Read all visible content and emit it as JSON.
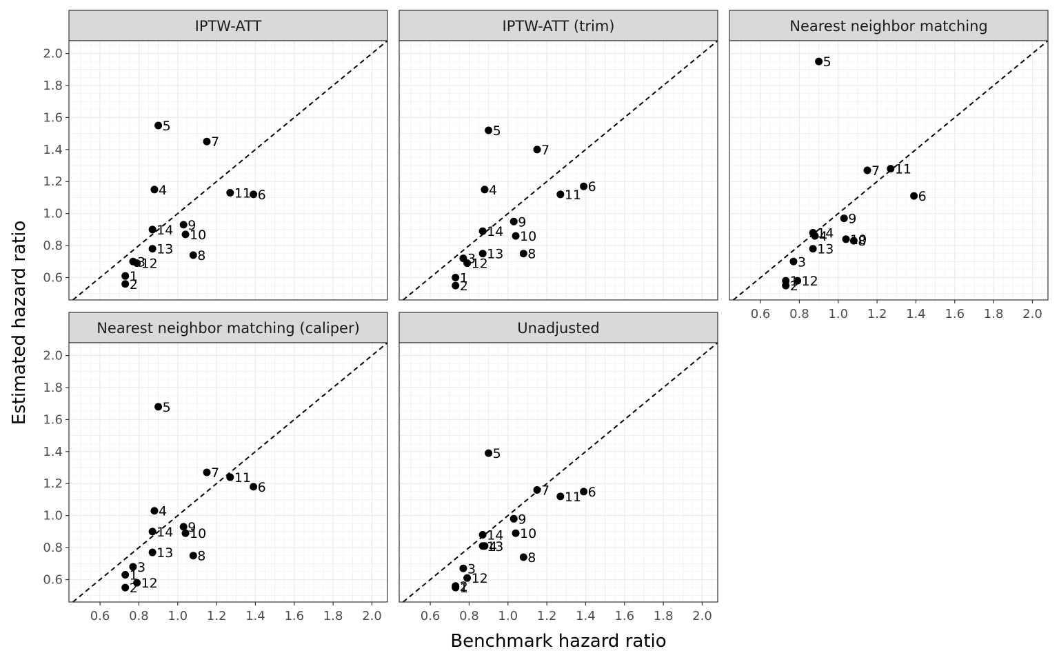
{
  "chart_data": {
    "type": "scatter",
    "layout": "facet-wrap 3 columns",
    "xlabel": "Benchmark hazard ratio",
    "ylabel": "Estimated hazard ratio",
    "xlim": [
      0.44,
      2.08
    ],
    "ylim": [
      0.46,
      2.08
    ],
    "x_ticks": [
      0.6,
      0.8,
      1.0,
      1.2,
      1.4,
      1.6,
      1.8,
      2.0
    ],
    "y_ticks": [
      0.6,
      0.8,
      1.0,
      1.2,
      1.4,
      1.6,
      1.8,
      2.0
    ],
    "x_tick_labels": [
      "0.6",
      "0.8",
      "1.0",
      "1.2",
      "1.4",
      "1.6",
      "1.8",
      "2.0"
    ],
    "y_tick_labels": [
      "0.6",
      "0.8",
      "1.0",
      "1.2",
      "1.4",
      "1.6",
      "1.8",
      "2.0"
    ],
    "grid": true,
    "reference_line": "y = x (dashed)",
    "benchmark_x": {
      "1": 0.73,
      "2": 0.73,
      "3": 0.77,
      "4": 0.88,
      "5": 0.9,
      "6": 1.39,
      "7": 1.15,
      "8": 1.08,
      "9": 1.03,
      "10": 1.04,
      "11": 1.27,
      "12": 0.79,
      "13": 0.87,
      "14": 0.87
    },
    "panels": [
      {
        "title": "IPTW-ATT",
        "points": [
          {
            "label": "1",
            "y": 0.61
          },
          {
            "label": "2",
            "y": 0.56
          },
          {
            "label": "3",
            "y": 0.7
          },
          {
            "label": "4",
            "y": 1.15
          },
          {
            "label": "5",
            "y": 1.55
          },
          {
            "label": "6",
            "y": 1.12
          },
          {
            "label": "7",
            "y": 1.45
          },
          {
            "label": "8",
            "y": 0.74
          },
          {
            "label": "9",
            "y": 0.93
          },
          {
            "label": "10",
            "y": 0.87
          },
          {
            "label": "11",
            "y": 1.13
          },
          {
            "label": "12",
            "y": 0.69
          },
          {
            "label": "13",
            "y": 0.78
          },
          {
            "label": "14",
            "y": 0.9
          }
        ]
      },
      {
        "title": "IPTW-ATT (trim)",
        "points": [
          {
            "label": "1",
            "y": 0.6
          },
          {
            "label": "2",
            "y": 0.55
          },
          {
            "label": "3",
            "y": 0.72
          },
          {
            "label": "4",
            "y": 1.15
          },
          {
            "label": "5",
            "y": 1.52
          },
          {
            "label": "6",
            "y": 1.17
          },
          {
            "label": "7",
            "y": 1.4
          },
          {
            "label": "8",
            "y": 0.75
          },
          {
            "label": "9",
            "y": 0.95
          },
          {
            "label": "10",
            "y": 0.86
          },
          {
            "label": "11",
            "y": 1.12
          },
          {
            "label": "12",
            "y": 0.69
          },
          {
            "label": "13",
            "y": 0.75
          },
          {
            "label": "14",
            "y": 0.89
          }
        ]
      },
      {
        "title": "Nearest neighbor matching",
        "points": [
          {
            "label": "1",
            "y": 0.58
          },
          {
            "label": "2",
            "y": 0.55
          },
          {
            "label": "3",
            "y": 0.7
          },
          {
            "label": "4",
            "y": 0.86
          },
          {
            "label": "5",
            "y": 1.95
          },
          {
            "label": "6",
            "y": 1.11
          },
          {
            "label": "7",
            "y": 1.27
          },
          {
            "label": "8",
            "y": 0.83
          },
          {
            "label": "9",
            "y": 0.97
          },
          {
            "label": "10",
            "y": 0.84
          },
          {
            "label": "11",
            "y": 1.28
          },
          {
            "label": "12",
            "y": 0.58
          },
          {
            "label": "13",
            "y": 0.78
          },
          {
            "label": "14",
            "y": 0.88
          }
        ]
      },
      {
        "title": "Nearest neighbor matching (caliper)",
        "points": [
          {
            "label": "1",
            "y": 0.63
          },
          {
            "label": "2",
            "y": 0.55
          },
          {
            "label": "3",
            "y": 0.68
          },
          {
            "label": "4",
            "y": 1.03
          },
          {
            "label": "5",
            "y": 1.68
          },
          {
            "label": "6",
            "y": 1.18
          },
          {
            "label": "7",
            "y": 1.27
          },
          {
            "label": "8",
            "y": 0.75
          },
          {
            "label": "9",
            "y": 0.93
          },
          {
            "label": "10",
            "y": 0.89
          },
          {
            "label": "11",
            "y": 1.24
          },
          {
            "label": "12",
            "y": 0.58
          },
          {
            "label": "13",
            "y": 0.77
          },
          {
            "label": "14",
            "y": 0.9
          }
        ]
      },
      {
        "title": "Unadjusted",
        "points": [
          {
            "label": "1",
            "y": 0.55
          },
          {
            "label": "2",
            "y": 0.56
          },
          {
            "label": "3",
            "y": 0.67
          },
          {
            "label": "4",
            "y": 0.81
          },
          {
            "label": "5",
            "y": 1.39
          },
          {
            "label": "6",
            "y": 1.15
          },
          {
            "label": "7",
            "y": 1.16
          },
          {
            "label": "8",
            "y": 0.74
          },
          {
            "label": "9",
            "y": 0.98
          },
          {
            "label": "10",
            "y": 0.89
          },
          {
            "label": "11",
            "y": 1.12
          },
          {
            "label": "12",
            "y": 0.61
          },
          {
            "label": "13",
            "y": 0.81
          },
          {
            "label": "14",
            "y": 0.88
          }
        ]
      }
    ]
  }
}
